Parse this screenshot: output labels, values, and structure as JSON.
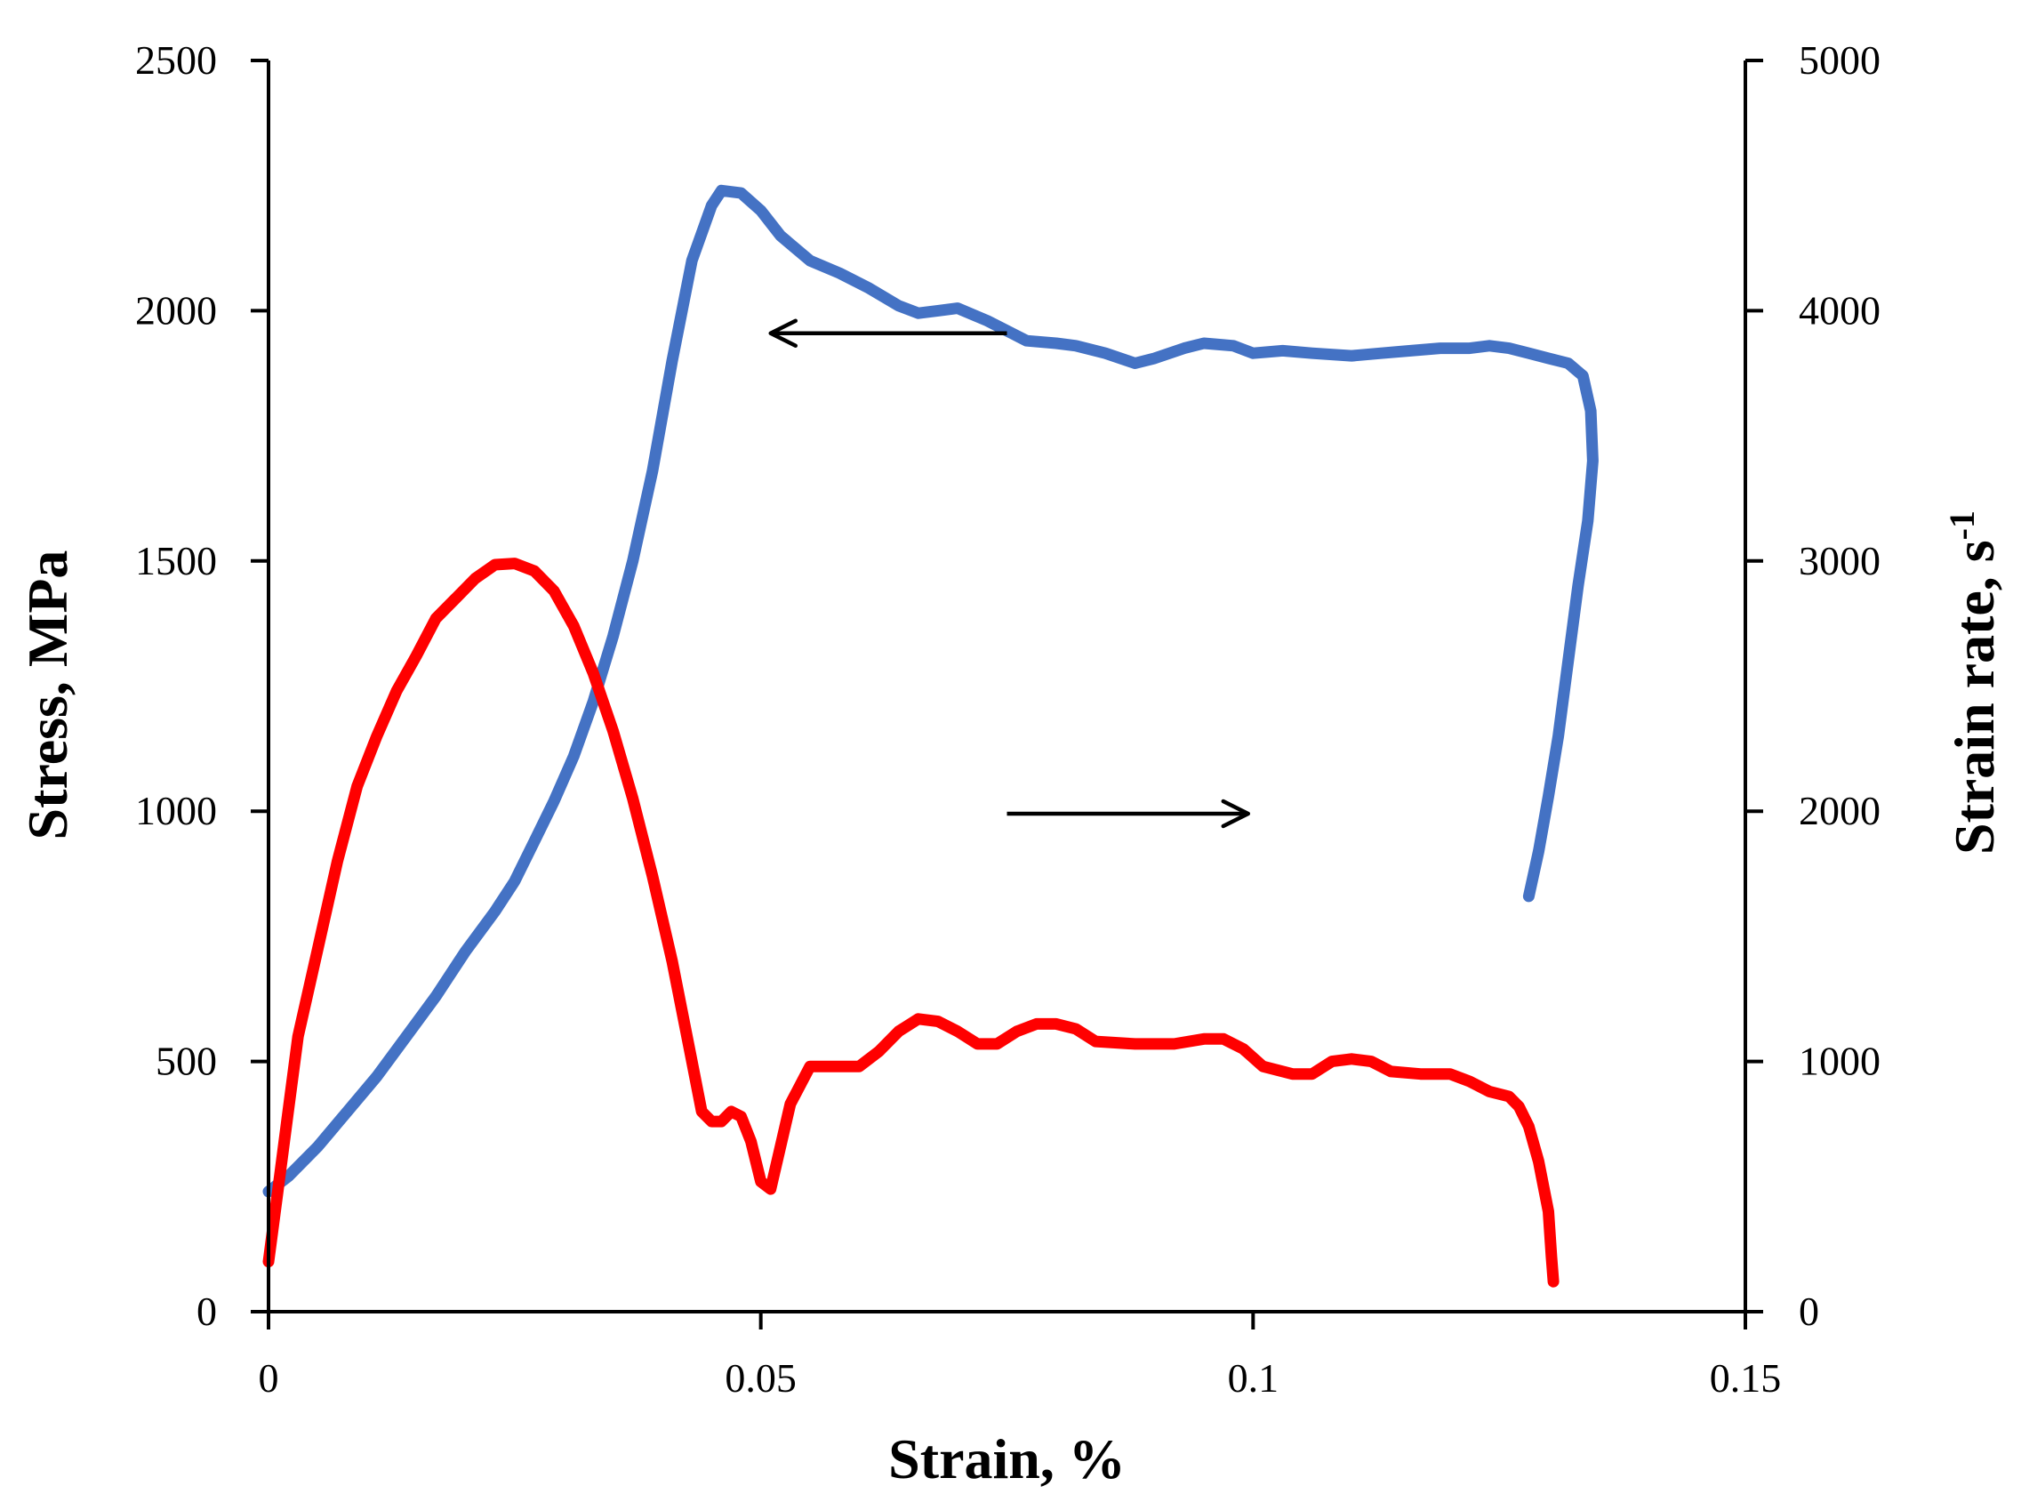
{
  "chart_data": {
    "type": "line",
    "title": "",
    "xlabel": "Strain, %",
    "ylabel_left": "Stress, MPa",
    "ylabel_right": "Strain rate, s",
    "ylabel_right_superscript": "-1",
    "xlim": [
      0,
      0.15
    ],
    "ylim_left": [
      0,
      2500
    ],
    "ylim_right": [
      0,
      5000
    ],
    "x_ticks": [
      {
        "value": 0,
        "label": "0"
      },
      {
        "value": 0.05,
        "label": "0.05"
      },
      {
        "value": 0.1,
        "label": "0.1"
      },
      {
        "value": 0.15,
        "label": "0.15"
      }
    ],
    "y_left_ticks": [
      {
        "value": 0,
        "label": "0"
      },
      {
        "value": 500,
        "label": "500"
      },
      {
        "value": 1000,
        "label": "1000"
      },
      {
        "value": 1500,
        "label": "1500"
      },
      {
        "value": 2000,
        "label": "2000"
      },
      {
        "value": 2500,
        "label": "2500"
      }
    ],
    "y_right_ticks": [
      {
        "value": 0,
        "label": "0"
      },
      {
        "value": 1000,
        "label": "1000"
      },
      {
        "value": 2000,
        "label": "2000"
      },
      {
        "value": 3000,
        "label": "3000"
      },
      {
        "value": 4000,
        "label": "4000"
      },
      {
        "value": 5000,
        "label": "5000"
      }
    ],
    "grid": false,
    "legend": "none",
    "series": [
      {
        "axis": "left",
        "color": "#4472C4",
        "points": [
          [
            0.0,
            240
          ],
          [
            0.002,
            270
          ],
          [
            0.005,
            330
          ],
          [
            0.008,
            400
          ],
          [
            0.011,
            470
          ],
          [
            0.014,
            550
          ],
          [
            0.017,
            630
          ],
          [
            0.02,
            720
          ],
          [
            0.023,
            800
          ],
          [
            0.025,
            860
          ],
          [
            0.027,
            940
          ],
          [
            0.029,
            1020
          ],
          [
            0.031,
            1110
          ],
          [
            0.033,
            1220
          ],
          [
            0.035,
            1350
          ],
          [
            0.037,
            1500
          ],
          [
            0.039,
            1680
          ],
          [
            0.041,
            1900
          ],
          [
            0.043,
            2100
          ],
          [
            0.045,
            2210
          ],
          [
            0.046,
            2240
          ],
          [
            0.048,
            2235
          ],
          [
            0.05,
            2200
          ],
          [
            0.052,
            2150
          ],
          [
            0.055,
            2100
          ],
          [
            0.058,
            2075
          ],
          [
            0.061,
            2045
          ],
          [
            0.064,
            2010
          ],
          [
            0.066,
            1995
          ],
          [
            0.068,
            2000
          ],
          [
            0.07,
            2005
          ],
          [
            0.073,
            1980
          ],
          [
            0.075,
            1960
          ],
          [
            0.077,
            1940
          ],
          [
            0.08,
            1935
          ],
          [
            0.082,
            1930
          ],
          [
            0.085,
            1915
          ],
          [
            0.088,
            1895
          ],
          [
            0.09,
            1905
          ],
          [
            0.093,
            1925
          ],
          [
            0.095,
            1935
          ],
          [
            0.098,
            1930
          ],
          [
            0.1,
            1915
          ],
          [
            0.103,
            1920
          ],
          [
            0.106,
            1915
          ],
          [
            0.11,
            1910
          ],
          [
            0.113,
            1915
          ],
          [
            0.116,
            1920
          ],
          [
            0.119,
            1925
          ],
          [
            0.122,
            1925
          ],
          [
            0.124,
            1930
          ],
          [
            0.126,
            1925
          ],
          [
            0.128,
            1915
          ],
          [
            0.13,
            1905
          ],
          [
            0.132,
            1895
          ],
          [
            0.1335,
            1870
          ],
          [
            0.1343,
            1800
          ],
          [
            0.1345,
            1700
          ],
          [
            0.134,
            1580
          ],
          [
            0.133,
            1450
          ],
          [
            0.132,
            1300
          ],
          [
            0.131,
            1150
          ],
          [
            0.13,
            1030
          ],
          [
            0.129,
            920
          ],
          [
            0.128,
            830
          ]
        ]
      },
      {
        "axis": "right",
        "color": "#FF0000",
        "points": [
          [
            0.0,
            200
          ],
          [
            0.001,
            500
          ],
          [
            0.002,
            800
          ],
          [
            0.003,
            1100
          ],
          [
            0.005,
            1450
          ],
          [
            0.007,
            1800
          ],
          [
            0.009,
            2100
          ],
          [
            0.011,
            2300
          ],
          [
            0.013,
            2480
          ],
          [
            0.015,
            2620
          ],
          [
            0.017,
            2770
          ],
          [
            0.019,
            2850
          ],
          [
            0.021,
            2930
          ],
          [
            0.023,
            2985
          ],
          [
            0.025,
            2990
          ],
          [
            0.027,
            2960
          ],
          [
            0.029,
            2880
          ],
          [
            0.031,
            2740
          ],
          [
            0.033,
            2550
          ],
          [
            0.035,
            2320
          ],
          [
            0.037,
            2050
          ],
          [
            0.039,
            1740
          ],
          [
            0.041,
            1400
          ],
          [
            0.043,
            1000
          ],
          [
            0.044,
            800
          ],
          [
            0.045,
            760
          ],
          [
            0.046,
            760
          ],
          [
            0.047,
            800
          ],
          [
            0.048,
            780
          ],
          [
            0.049,
            680
          ],
          [
            0.05,
            520
          ],
          [
            0.051,
            490
          ],
          [
            0.052,
            660
          ],
          [
            0.053,
            830
          ],
          [
            0.055,
            980
          ],
          [
            0.057,
            980
          ],
          [
            0.06,
            980
          ],
          [
            0.062,
            1040
          ],
          [
            0.064,
            1120
          ],
          [
            0.066,
            1170
          ],
          [
            0.068,
            1160
          ],
          [
            0.07,
            1120
          ],
          [
            0.072,
            1070
          ],
          [
            0.074,
            1070
          ],
          [
            0.076,
            1120
          ],
          [
            0.078,
            1150
          ],
          [
            0.08,
            1150
          ],
          [
            0.082,
            1130
          ],
          [
            0.084,
            1080
          ],
          [
            0.088,
            1070
          ],
          [
            0.092,
            1070
          ],
          [
            0.095,
            1090
          ],
          [
            0.097,
            1090
          ],
          [
            0.099,
            1050
          ],
          [
            0.101,
            980
          ],
          [
            0.104,
            950
          ],
          [
            0.106,
            950
          ],
          [
            0.108,
            1000
          ],
          [
            0.11,
            1010
          ],
          [
            0.112,
            1000
          ],
          [
            0.114,
            960
          ],
          [
            0.117,
            950
          ],
          [
            0.12,
            950
          ],
          [
            0.122,
            920
          ],
          [
            0.124,
            880
          ],
          [
            0.126,
            860
          ],
          [
            0.127,
            820
          ],
          [
            0.128,
            740
          ],
          [
            0.129,
            600
          ],
          [
            0.13,
            400
          ],
          [
            0.1303,
            220
          ],
          [
            0.1305,
            120
          ]
        ]
      }
    ],
    "annotations": [
      {
        "type": "arrow",
        "direction": "left",
        "x_from": 0.075,
        "x_to": 0.051,
        "axis": "left",
        "y": 1955
      },
      {
        "type": "arrow",
        "direction": "right",
        "x_from": 0.075,
        "x_to": 0.0995,
        "axis": "left",
        "y": 995
      }
    ]
  }
}
